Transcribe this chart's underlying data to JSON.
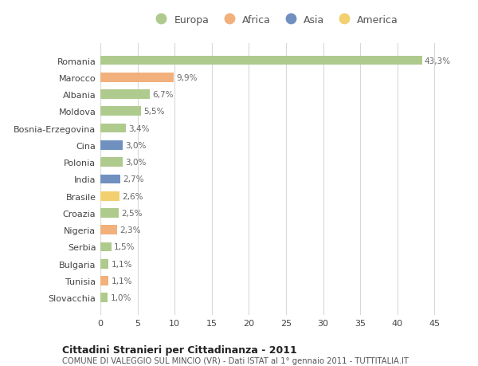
{
  "countries": [
    "Romania",
    "Marocco",
    "Albania",
    "Moldova",
    "Bosnia-Erzegovina",
    "Cina",
    "Polonia",
    "India",
    "Brasile",
    "Croazia",
    "Nigeria",
    "Serbia",
    "Bulgaria",
    "Tunisia",
    "Slovacchia"
  ],
  "values": [
    43.3,
    9.9,
    6.7,
    5.5,
    3.4,
    3.0,
    3.0,
    2.7,
    2.6,
    2.5,
    2.3,
    1.5,
    1.1,
    1.1,
    1.0
  ],
  "labels": [
    "43,3%",
    "9,9%",
    "6,7%",
    "5,5%",
    "3,4%",
    "3,0%",
    "3,0%",
    "2,7%",
    "2,6%",
    "2,5%",
    "2,3%",
    "1,5%",
    "1,1%",
    "1,1%",
    "1,0%"
  ],
  "continents": [
    "Europa",
    "Africa",
    "Europa",
    "Europa",
    "Europa",
    "Asia",
    "Europa",
    "Asia",
    "America",
    "Europa",
    "Africa",
    "Europa",
    "Europa",
    "Africa",
    "Europa"
  ],
  "continent_colors": {
    "Europa": "#aeca8c",
    "Africa": "#f2b07c",
    "Asia": "#7090c0",
    "America": "#f2d070"
  },
  "legend_order": [
    "Europa",
    "Africa",
    "Asia",
    "America"
  ],
  "title_bold": "Cittadini Stranieri per Cittadinanza - 2011",
  "title_sub": "COMUNE DI VALEGGIO SUL MINCIO (VR) - Dati ISTAT al 1° gennaio 2011 - TUTTITALIA.IT",
  "xlim": [
    0,
    47
  ],
  "xticks": [
    0,
    5,
    10,
    15,
    20,
    25,
    30,
    35,
    40,
    45
  ],
  "background_color": "#ffffff",
  "grid_color": "#d8d8d8"
}
